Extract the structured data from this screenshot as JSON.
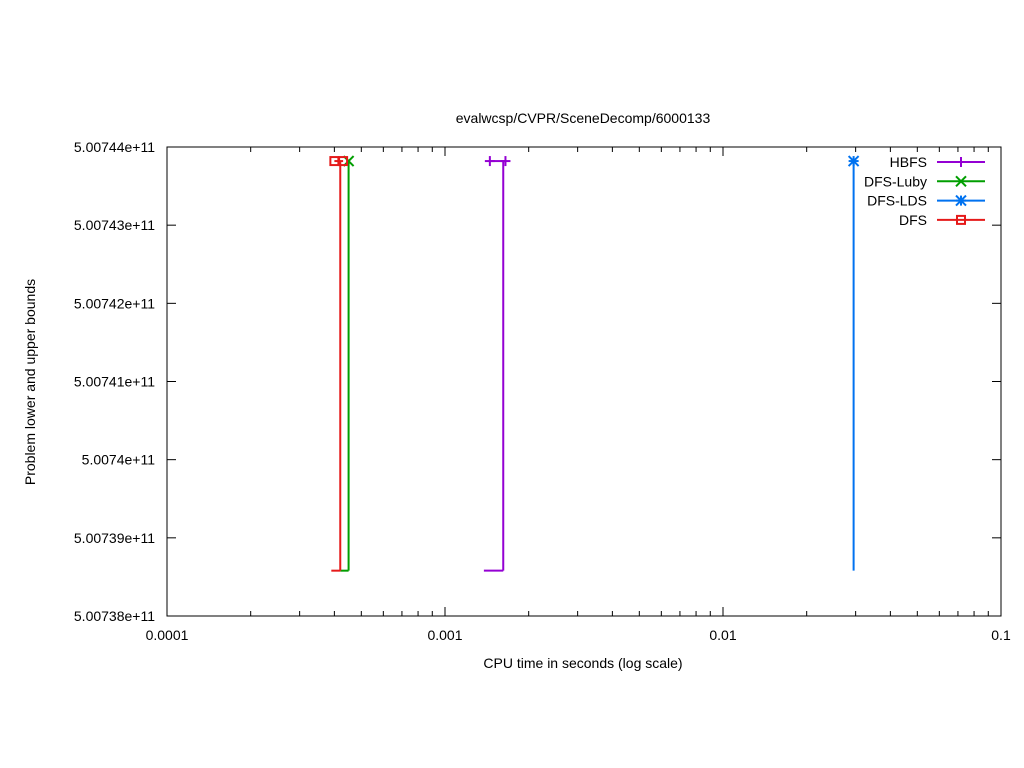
{
  "chart_data": {
    "type": "line",
    "title": "evalwcsp/CVPR/SceneDecomp/6000133",
    "xlabel": "CPU time in seconds (log scale)",
    "ylabel": "Problem lower and upper bounds",
    "x_scale": "log",
    "xlim": [
      0.0001,
      0.1
    ],
    "ylim": [
      500738000000,
      500744000000
    ],
    "x_ticks": [
      {
        "value": 0.0001,
        "label": "0.0001"
      },
      {
        "value": 0.001,
        "label": "0.001"
      },
      {
        "value": 0.01,
        "label": "0.01"
      },
      {
        "value": 0.1,
        "label": "0.1"
      }
    ],
    "y_ticks": [
      {
        "value": 500738000000,
        "label": "5.00738e+11"
      },
      {
        "value": 500739000000,
        "label": "5.00739e+11"
      },
      {
        "value": 500740000000,
        "label": "5.0074e+11"
      },
      {
        "value": 500741000000,
        "label": "5.00741e+11"
      },
      {
        "value": 500742000000,
        "label": "5.00742e+11"
      },
      {
        "value": 500743000000,
        "label": "5.00743e+11"
      },
      {
        "value": 500744000000,
        "label": "5.00744e+11"
      }
    ],
    "grid": false,
    "legend_position": "top-right",
    "series": [
      {
        "name": "HBFS",
        "color": "#9400d3",
        "marker": "plus",
        "upper": [
          [
            0.00145,
            500743820000
          ],
          [
            0.00165,
            500743820000
          ]
        ],
        "lower": [
          [
            0.00138,
            500738580000
          ],
          [
            0.00162,
            500738580000
          ]
        ]
      },
      {
        "name": "DFS-Luby",
        "color": "#009e00",
        "marker": "cross",
        "upper": [
          [
            0.00045,
            500743820000
          ]
        ],
        "lower": [
          [
            0.00042,
            500738580000
          ],
          [
            0.00045,
            500738580000
          ]
        ]
      },
      {
        "name": "DFS-LDS",
        "color": "#0072f0",
        "marker": "star",
        "upper": [
          [
            0.0295,
            500743820000
          ]
        ],
        "lower": [
          [
            0.0295,
            500738580000
          ]
        ]
      },
      {
        "name": "DFS",
        "color": "#e51a1a",
        "marker": "square",
        "upper": [
          [
            0.0004,
            500743820000
          ],
          [
            0.00043,
            500743820000
          ]
        ],
        "lower": [
          [
            0.00039,
            500738580000
          ],
          [
            0.00042,
            500738580000
          ]
        ]
      }
    ]
  }
}
